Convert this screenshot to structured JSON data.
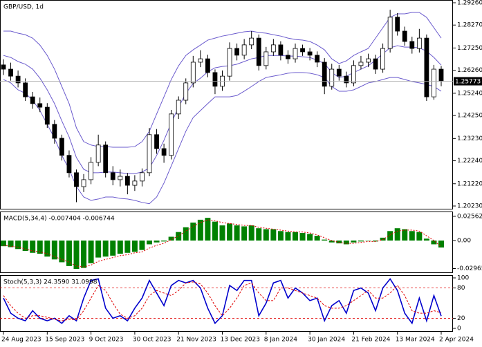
{
  "chart_data": [
    {
      "type": "candlestick",
      "title": "GBP/USD, 1d",
      "ylim": [
        1.20077,
        1.29383
      ],
      "yticks": [
        {
          "value": 1.2926,
          "label": "1.29260"
        },
        {
          "value": 1.2827,
          "label": "1.28270"
        },
        {
          "value": 1.2725,
          "label": "1.27250"
        },
        {
          "value": 1.2626,
          "label": "1.26260"
        },
        {
          "value": 1.2524,
          "label": "1.25240"
        },
        {
          "value": 1.2425,
          "label": "1.24250"
        },
        {
          "value": 1.2323,
          "label": "1.23230"
        },
        {
          "value": 1.2224,
          "label": "1.22240"
        },
        {
          "value": 1.2122,
          "label": "1.21220"
        },
        {
          "value": 1.2023,
          "label": "1.20230"
        }
      ],
      "up_color": "#ffffff",
      "down_color": "#000000",
      "ohlc": [
        [
          1.265,
          1.2675,
          1.2605,
          1.2631
        ],
        [
          1.2631,
          1.266,
          1.258,
          1.26
        ],
        [
          1.26,
          1.2625,
          1.255,
          1.257
        ],
        [
          1.257,
          1.259,
          1.249,
          1.2508
        ],
        [
          1.2508,
          1.253,
          1.2455,
          1.2478
        ],
        [
          1.2478,
          1.2505,
          1.244,
          1.2462
        ],
        [
          1.2462,
          1.248,
          1.237,
          1.2386
        ],
        [
          1.2386,
          1.2405,
          1.23,
          1.2324
        ],
        [
          1.2324,
          1.234,
          1.2225,
          1.2248
        ],
        [
          1.2248,
          1.227,
          1.215,
          1.2171
        ],
        [
          1.2171,
          1.2185,
          1.204,
          1.2109
        ],
        [
          1.2109,
          1.2165,
          1.2085,
          1.214
        ],
        [
          1.214,
          1.224,
          1.212,
          1.2217
        ],
        [
          1.2217,
          1.234,
          1.22,
          1.2294
        ],
        [
          1.2294,
          1.231,
          1.215,
          1.2171
        ],
        [
          1.2171,
          1.22,
          1.2115,
          1.214
        ],
        [
          1.214,
          1.2185,
          1.211,
          1.2155
        ],
        [
          1.2155,
          1.217,
          1.2075,
          1.2115
        ],
        [
          1.2115,
          1.216,
          1.209,
          1.2134
        ],
        [
          1.2134,
          1.219,
          1.211,
          1.2171
        ],
        [
          1.2171,
          1.237,
          1.2155,
          1.234
        ],
        [
          1.234,
          1.2365,
          1.2255,
          1.2278
        ],
        [
          1.2278,
          1.23,
          1.2215,
          1.2248
        ],
        [
          1.2248,
          1.245,
          1.223,
          1.2432
        ],
        [
          1.2432,
          1.251,
          1.241,
          1.2493
        ],
        [
          1.2493,
          1.259,
          1.2475,
          1.257
        ],
        [
          1.257,
          1.269,
          1.255,
          1.2662
        ],
        [
          1.2662,
          1.2715,
          1.264,
          1.2677
        ],
        [
          1.2677,
          1.2695,
          1.2595,
          1.2616
        ],
        [
          1.2616,
          1.263,
          1.252,
          1.2555
        ],
        [
          1.2555,
          1.2625,
          1.2535,
          1.26
        ],
        [
          1.26,
          1.275,
          1.258,
          1.2723
        ],
        [
          1.2723,
          1.2745,
          1.267,
          1.2693
        ],
        [
          1.2693,
          1.2765,
          1.2675,
          1.2739
        ],
        [
          1.2739,
          1.28,
          1.272,
          1.2769
        ],
        [
          1.2769,
          1.2785,
          1.2625,
          1.2647
        ],
        [
          1.2647,
          1.273,
          1.263,
          1.2708
        ],
        [
          1.2708,
          1.2765,
          1.269,
          1.2739
        ],
        [
          1.2739,
          1.2755,
          1.267,
          1.2693
        ],
        [
          1.2693,
          1.2715,
          1.2655,
          1.2677
        ],
        [
          1.2677,
          1.2745,
          1.266,
          1.2723
        ],
        [
          1.2723,
          1.274,
          1.269,
          1.2708
        ],
        [
          1.2708,
          1.2725,
          1.267,
          1.2693
        ],
        [
          1.2693,
          1.271,
          1.264,
          1.2662
        ],
        [
          1.2662,
          1.268,
          1.252,
          1.2555
        ],
        [
          1.2555,
          1.2655,
          1.254,
          1.2631
        ],
        [
          1.2631,
          1.265,
          1.258,
          1.26
        ],
        [
          1.26,
          1.262,
          1.255,
          1.257
        ],
        [
          1.257,
          1.267,
          1.2555,
          1.2647
        ],
        [
          1.2647,
          1.269,
          1.263,
          1.2662
        ],
        [
          1.2662,
          1.27,
          1.264,
          1.2677
        ],
        [
          1.2677,
          1.2695,
          1.261,
          1.2631
        ],
        [
          1.2631,
          1.2745,
          1.2615,
          1.2723
        ],
        [
          1.2723,
          1.2895,
          1.2705,
          1.2862
        ],
        [
          1.2862,
          1.288,
          1.278,
          1.28
        ],
        [
          1.28,
          1.282,
          1.2735,
          1.2754
        ],
        [
          1.2754,
          1.2775,
          1.27,
          1.2723
        ],
        [
          1.2723,
          1.281,
          1.2705,
          1.2769
        ],
        [
          1.2769,
          1.2785,
          1.249,
          1.2508
        ],
        [
          1.2508,
          1.265,
          1.2495,
          1.2631
        ],
        [
          1.2631,
          1.2645,
          1.2555,
          1.25773
        ]
      ],
      "series": [
        {
          "kind": "line",
          "color": "#6a5acd",
          "values": [
            1.28,
            1.28,
            1.2791,
            1.2784,
            1.2769,
            1.2738,
            1.2692,
            1.2631,
            1.2554,
            1.2478,
            1.237,
            1.2309,
            1.2294,
            1.2287,
            1.2287,
            1.2284,
            1.2284,
            1.2284,
            1.2287,
            1.2309,
            1.2355,
            1.2432,
            1.2508,
            1.2585,
            1.2646,
            1.2692,
            1.2717,
            1.2738,
            1.276,
            1.2769,
            1.2778,
            1.2784,
            1.2791,
            1.2797,
            1.28,
            1.2794,
            1.2791,
            1.2784,
            1.2778,
            1.2769,
            1.2763,
            1.276,
            1.2754,
            1.2738,
            1.2717,
            1.2677,
            1.2656,
            1.2668,
            1.2692,
            1.2708,
            1.2723,
            1.2769,
            1.2815,
            1.2861,
            1.2877,
            1.2877,
            1.2883,
            1.2883,
            1.2861,
            1.2815,
            1.2769
          ]
        },
        {
          "kind": "line",
          "color": "#6a5acd",
          "values": [
            1.2692,
            1.2683,
            1.2665,
            1.2653,
            1.2631,
            1.2591,
            1.2539,
            1.2478,
            1.2401,
            1.233,
            1.2238,
            1.2186,
            1.2171,
            1.2171,
            1.2174,
            1.2174,
            1.2171,
            1.2167,
            1.2167,
            1.2174,
            1.2192,
            1.2248,
            1.2315,
            1.2392,
            1.2462,
            1.2524,
            1.2567,
            1.2591,
            1.2619,
            1.2637,
            1.2643,
            1.2646,
            1.2653,
            1.2665,
            1.2677,
            1.2683,
            1.2692,
            1.2692,
            1.2692,
            1.2689,
            1.2689,
            1.2686,
            1.2683,
            1.2671,
            1.2656,
            1.2616,
            1.2594,
            1.26,
            1.2616,
            1.2631,
            1.2646,
            1.2671,
            1.2699,
            1.2726,
            1.2735,
            1.2729,
            1.2729,
            1.2726,
            1.2711,
            1.2683,
            1.2649
          ]
        },
        {
          "kind": "line",
          "color": "#6a5acd",
          "values": [
            1.2585,
            1.257,
            1.2539,
            1.2524,
            1.2493,
            1.2447,
            1.2386,
            1.2324,
            1.2248,
            1.2186,
            1.2109,
            1.2063,
            1.2048,
            1.2054,
            1.2063,
            1.2063,
            1.2057,
            1.2054,
            1.2048,
            1.2039,
            1.2033,
            1.2063,
            1.2125,
            1.2201,
            1.2278,
            1.2355,
            1.2416,
            1.2447,
            1.2478,
            1.2508,
            1.2508,
            1.2508,
            1.2514,
            1.2533,
            1.2554,
            1.2576,
            1.2594,
            1.26,
            1.2606,
            1.2613,
            1.2616,
            1.2616,
            1.2613,
            1.2606,
            1.2594,
            1.2554,
            1.2533,
            1.2533,
            1.2539,
            1.2554,
            1.257,
            1.2576,
            1.2585,
            1.2594,
            1.2594,
            1.2585,
            1.2576,
            1.257,
            1.2563,
            1.2554,
            1.2533
          ]
        }
      ]
    },
    {
      "type": "bar",
      "title": "MACD(5,34,4) -0.007404 -0.006744",
      "ylim": [
        -0.0344,
        0.0307
      ],
      "yticks": [
        0.025621,
        {
          "value": 0,
          "label": "0.00"
        },
        -0.02965
      ],
      "series": [
        {
          "kind": "bar",
          "color": "#008000",
          "values": [
            -0.006,
            -0.007,
            -0.009,
            -0.011,
            -0.013,
            -0.014,
            -0.017,
            -0.02,
            -0.023,
            -0.027,
            -0.03,
            -0.029,
            -0.024,
            -0.018,
            -0.017,
            -0.016,
            -0.014,
            -0.013,
            -0.012,
            -0.01,
            -0.004,
            -0.002,
            -0.001,
            0.004,
            0.009,
            0.014,
            0.019,
            0.022,
            0.024,
            0.02,
            0.016,
            0.018,
            0.016,
            0.015,
            0.016,
            0.013,
            0.012,
            0.012,
            0.01,
            0.009,
            0.009,
            0.008,
            0.007,
            0.005,
            0.001,
            -0.002,
            -0.003,
            -0.004,
            -0.002,
            -0.001,
            0.0,
            -0.001,
            0.003,
            0.01,
            0.013,
            0.012,
            0.01,
            0.009,
            0.002,
            -0.004,
            -0.007404
          ]
        },
        {
          "kind": "line",
          "color": "#e00000",
          "dash": "2,2",
          "values": [
            -0.005,
            -0.006,
            -0.007,
            -0.009,
            -0.011,
            -0.012,
            -0.014,
            -0.017,
            -0.02,
            -0.023,
            -0.027,
            -0.028,
            -0.026,
            -0.022,
            -0.02,
            -0.018,
            -0.016,
            -0.015,
            -0.013,
            -0.012,
            -0.008,
            -0.005,
            -0.003,
            0.001,
            0.005,
            0.01,
            0.015,
            0.019,
            0.022,
            0.021,
            0.019,
            0.018,
            0.017,
            0.016,
            0.016,
            0.014,
            0.013,
            0.012,
            0.011,
            0.01,
            0.009,
            0.009,
            0.008,
            0.006,
            0.003,
            0.0,
            -0.002,
            -0.003,
            -0.003,
            -0.002,
            -0.001,
            -0.001,
            0.001,
            0.006,
            0.01,
            0.011,
            0.011,
            0.01,
            0.005,
            0.0,
            -0.006744
          ]
        }
      ]
    },
    {
      "type": "line",
      "title": "Stoch(5,3,3) 24.3590 31.0998",
      "ylim": [
        -6.8,
        105.5
      ],
      "yticks": [
        100,
        80,
        20,
        0
      ],
      "levels": [
        80,
        20
      ],
      "level_color": "#e00000",
      "categories": [
        "24 Aug 2023",
        null,
        null,
        null,
        null,
        null,
        "15 Sep 2023",
        null,
        null,
        null,
        null,
        null,
        "9 Oct 2023",
        null,
        null,
        null,
        null,
        null,
        "30 Oct 2023",
        null,
        null,
        null,
        null,
        null,
        "21 Nov 2023",
        null,
        null,
        null,
        null,
        null,
        "13 Dec 2023",
        null,
        null,
        null,
        null,
        null,
        "8 Jan 2024",
        null,
        null,
        null,
        null,
        null,
        "30 Jan 2024",
        null,
        null,
        null,
        null,
        null,
        "21 Feb 2024",
        null,
        null,
        null,
        null,
        null,
        "13 Mar 2024",
        null,
        null,
        null,
        null,
        null,
        "2 Apr 2024"
      ],
      "series": [
        {
          "kind": "line",
          "color": "#0000cd",
          "width": 1.6,
          "values": [
            60,
            30,
            20,
            15,
            35,
            20,
            15,
            20,
            10,
            25,
            15,
            60,
            95,
            98,
            40,
            20,
            25,
            15,
            40,
            60,
            95,
            70,
            45,
            85,
            95,
            90,
            95,
            80,
            40,
            10,
            25,
            85,
            75,
            95,
            95,
            25,
            50,
            90,
            95,
            60,
            80,
            70,
            55,
            60,
            15,
            45,
            55,
            30,
            75,
            80,
            70,
            35,
            80,
            98,
            75,
            30,
            10,
            60,
            15,
            65,
            24.359
          ]
        },
        {
          "kind": "line",
          "color": "#e00000",
          "dash": "3,2",
          "width": 1,
          "values": [
            65,
            45,
            30,
            20,
            25,
            25,
            22,
            18,
            15,
            18,
            17,
            35,
            60,
            85,
            75,
            50,
            28,
            20,
            25,
            40,
            65,
            75,
            70,
            65,
            75,
            90,
            92,
            88,
            70,
            45,
            25,
            40,
            60,
            85,
            90,
            70,
            55,
            55,
            80,
            80,
            75,
            70,
            65,
            60,
            45,
            40,
            40,
            45,
            55,
            65,
            75,
            60,
            60,
            70,
            85,
            65,
            35,
            30,
            30,
            35,
            31.0998
          ]
        }
      ]
    }
  ]
}
